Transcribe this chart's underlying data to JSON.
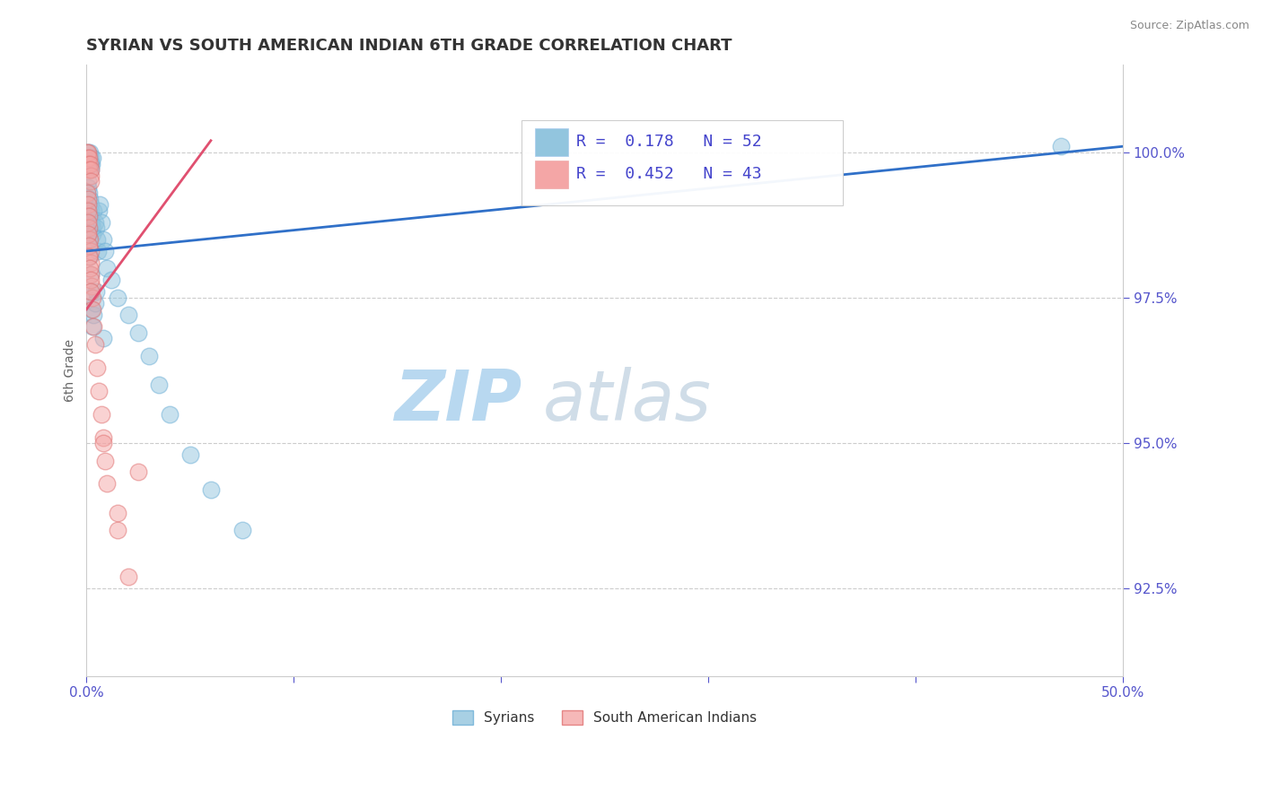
{
  "title": "SYRIAN VS SOUTH AMERICAN INDIAN 6TH GRADE CORRELATION CHART",
  "ylabel": "6th Grade",
  "source_text": "Source: ZipAtlas.com",
  "watermark_zip": "ZIP",
  "watermark_atlas": "atlas",
  "xlim": [
    0.0,
    50.0
  ],
  "ylim": [
    91.0,
    101.5
  ],
  "xticks": [
    0.0,
    10.0,
    20.0,
    30.0,
    40.0,
    50.0
  ],
  "xticklabels": [
    "0.0%",
    "",
    "",
    "",
    "",
    "50.0%"
  ],
  "yticks": [
    92.5,
    95.0,
    97.5,
    100.0
  ],
  "yticklabels": [
    "92.5%",
    "95.0%",
    "97.5%",
    "100.0%"
  ],
  "blue_color": "#92c5de",
  "pink_color": "#f4a6a6",
  "blue_edge_color": "#6baed6",
  "pink_edge_color": "#e07070",
  "blue_line_color": "#3070c8",
  "pink_line_color": "#e05070",
  "legend_text_color": "#4444cc",
  "tick_color": "#5555cc",
  "ylabel_color": "#666666",
  "legend_R_blue": "R =  0.178   N = 52",
  "legend_R_pink": "R =  0.452   N = 43",
  "legend_label_blue": "Syrians",
  "legend_label_pink": "South American Indians",
  "blue_dots_x": [
    0.05,
    0.08,
    0.1,
    0.12,
    0.15,
    0.18,
    0.2,
    0.22,
    0.25,
    0.28,
    0.05,
    0.08,
    0.1,
    0.15,
    0.18,
    0.2,
    0.22,
    0.25,
    0.28,
    0.3,
    0.35,
    0.4,
    0.45,
    0.5,
    0.55,
    0.6,
    0.65,
    0.7,
    0.8,
    0.9,
    1.0,
    1.2,
    1.5,
    2.0,
    2.5,
    3.0,
    3.5,
    4.0,
    5.0,
    6.0,
    0.12,
    0.15,
    0.18,
    0.2,
    0.25,
    0.3,
    0.35,
    0.4,
    0.45,
    0.8,
    7.5,
    47.0
  ],
  "blue_dots_y": [
    100.0,
    99.9,
    99.8,
    99.9,
    100.0,
    99.8,
    99.7,
    99.9,
    99.8,
    99.9,
    99.5,
    99.4,
    99.3,
    99.2,
    99.1,
    99.0,
    98.9,
    98.8,
    98.7,
    98.6,
    99.0,
    98.8,
    98.7,
    98.5,
    98.3,
    99.0,
    99.1,
    98.8,
    98.5,
    98.3,
    98.0,
    97.8,
    97.5,
    97.2,
    96.9,
    96.5,
    96.0,
    95.5,
    94.8,
    94.2,
    98.5,
    98.2,
    97.9,
    97.6,
    97.3,
    97.0,
    97.2,
    97.4,
    97.6,
    96.8,
    93.5,
    100.1
  ],
  "pink_dots_x": [
    0.03,
    0.05,
    0.07,
    0.08,
    0.1,
    0.12,
    0.15,
    0.18,
    0.2,
    0.22,
    0.03,
    0.05,
    0.07,
    0.08,
    0.1,
    0.12,
    0.15,
    0.18,
    0.2,
    0.22,
    0.25,
    0.28,
    0.3,
    0.35,
    0.4,
    0.5,
    0.6,
    0.7,
    0.8,
    0.9,
    1.0,
    1.5,
    2.0,
    0.05,
    0.08,
    0.1,
    0.12,
    0.15,
    0.18,
    0.2,
    0.8,
    1.5,
    2.5
  ],
  "pink_dots_y": [
    100.0,
    99.9,
    100.0,
    99.8,
    99.9,
    99.7,
    99.8,
    99.6,
    99.7,
    99.5,
    99.3,
    99.2,
    99.1,
    99.0,
    98.9,
    98.7,
    98.5,
    98.3,
    98.1,
    97.9,
    97.7,
    97.5,
    97.3,
    97.0,
    96.7,
    96.3,
    95.9,
    95.5,
    95.1,
    94.7,
    94.3,
    93.5,
    92.7,
    98.8,
    98.6,
    98.4,
    98.2,
    98.0,
    97.8,
    97.6,
    95.0,
    93.8,
    94.5
  ],
  "blue_trend_x": [
    0.0,
    50.0
  ],
  "blue_trend_y": [
    98.3,
    100.1
  ],
  "pink_trend_x": [
    0.0,
    6.0
  ],
  "pink_trend_y": [
    97.3,
    100.2
  ],
  "background_color": "#ffffff",
  "grid_color": "#cccccc",
  "title_fontsize": 13,
  "axis_label_fontsize": 10,
  "tick_fontsize": 11,
  "legend_fontsize": 13,
  "watermark_fontsize_zip": 56,
  "watermark_fontsize_atlas": 56,
  "watermark_color_zip": "#b8d8f0",
  "watermark_color_atlas": "#d0dde8",
  "source_fontsize": 9,
  "dot_size": 180,
  "dot_alpha": 0.5
}
